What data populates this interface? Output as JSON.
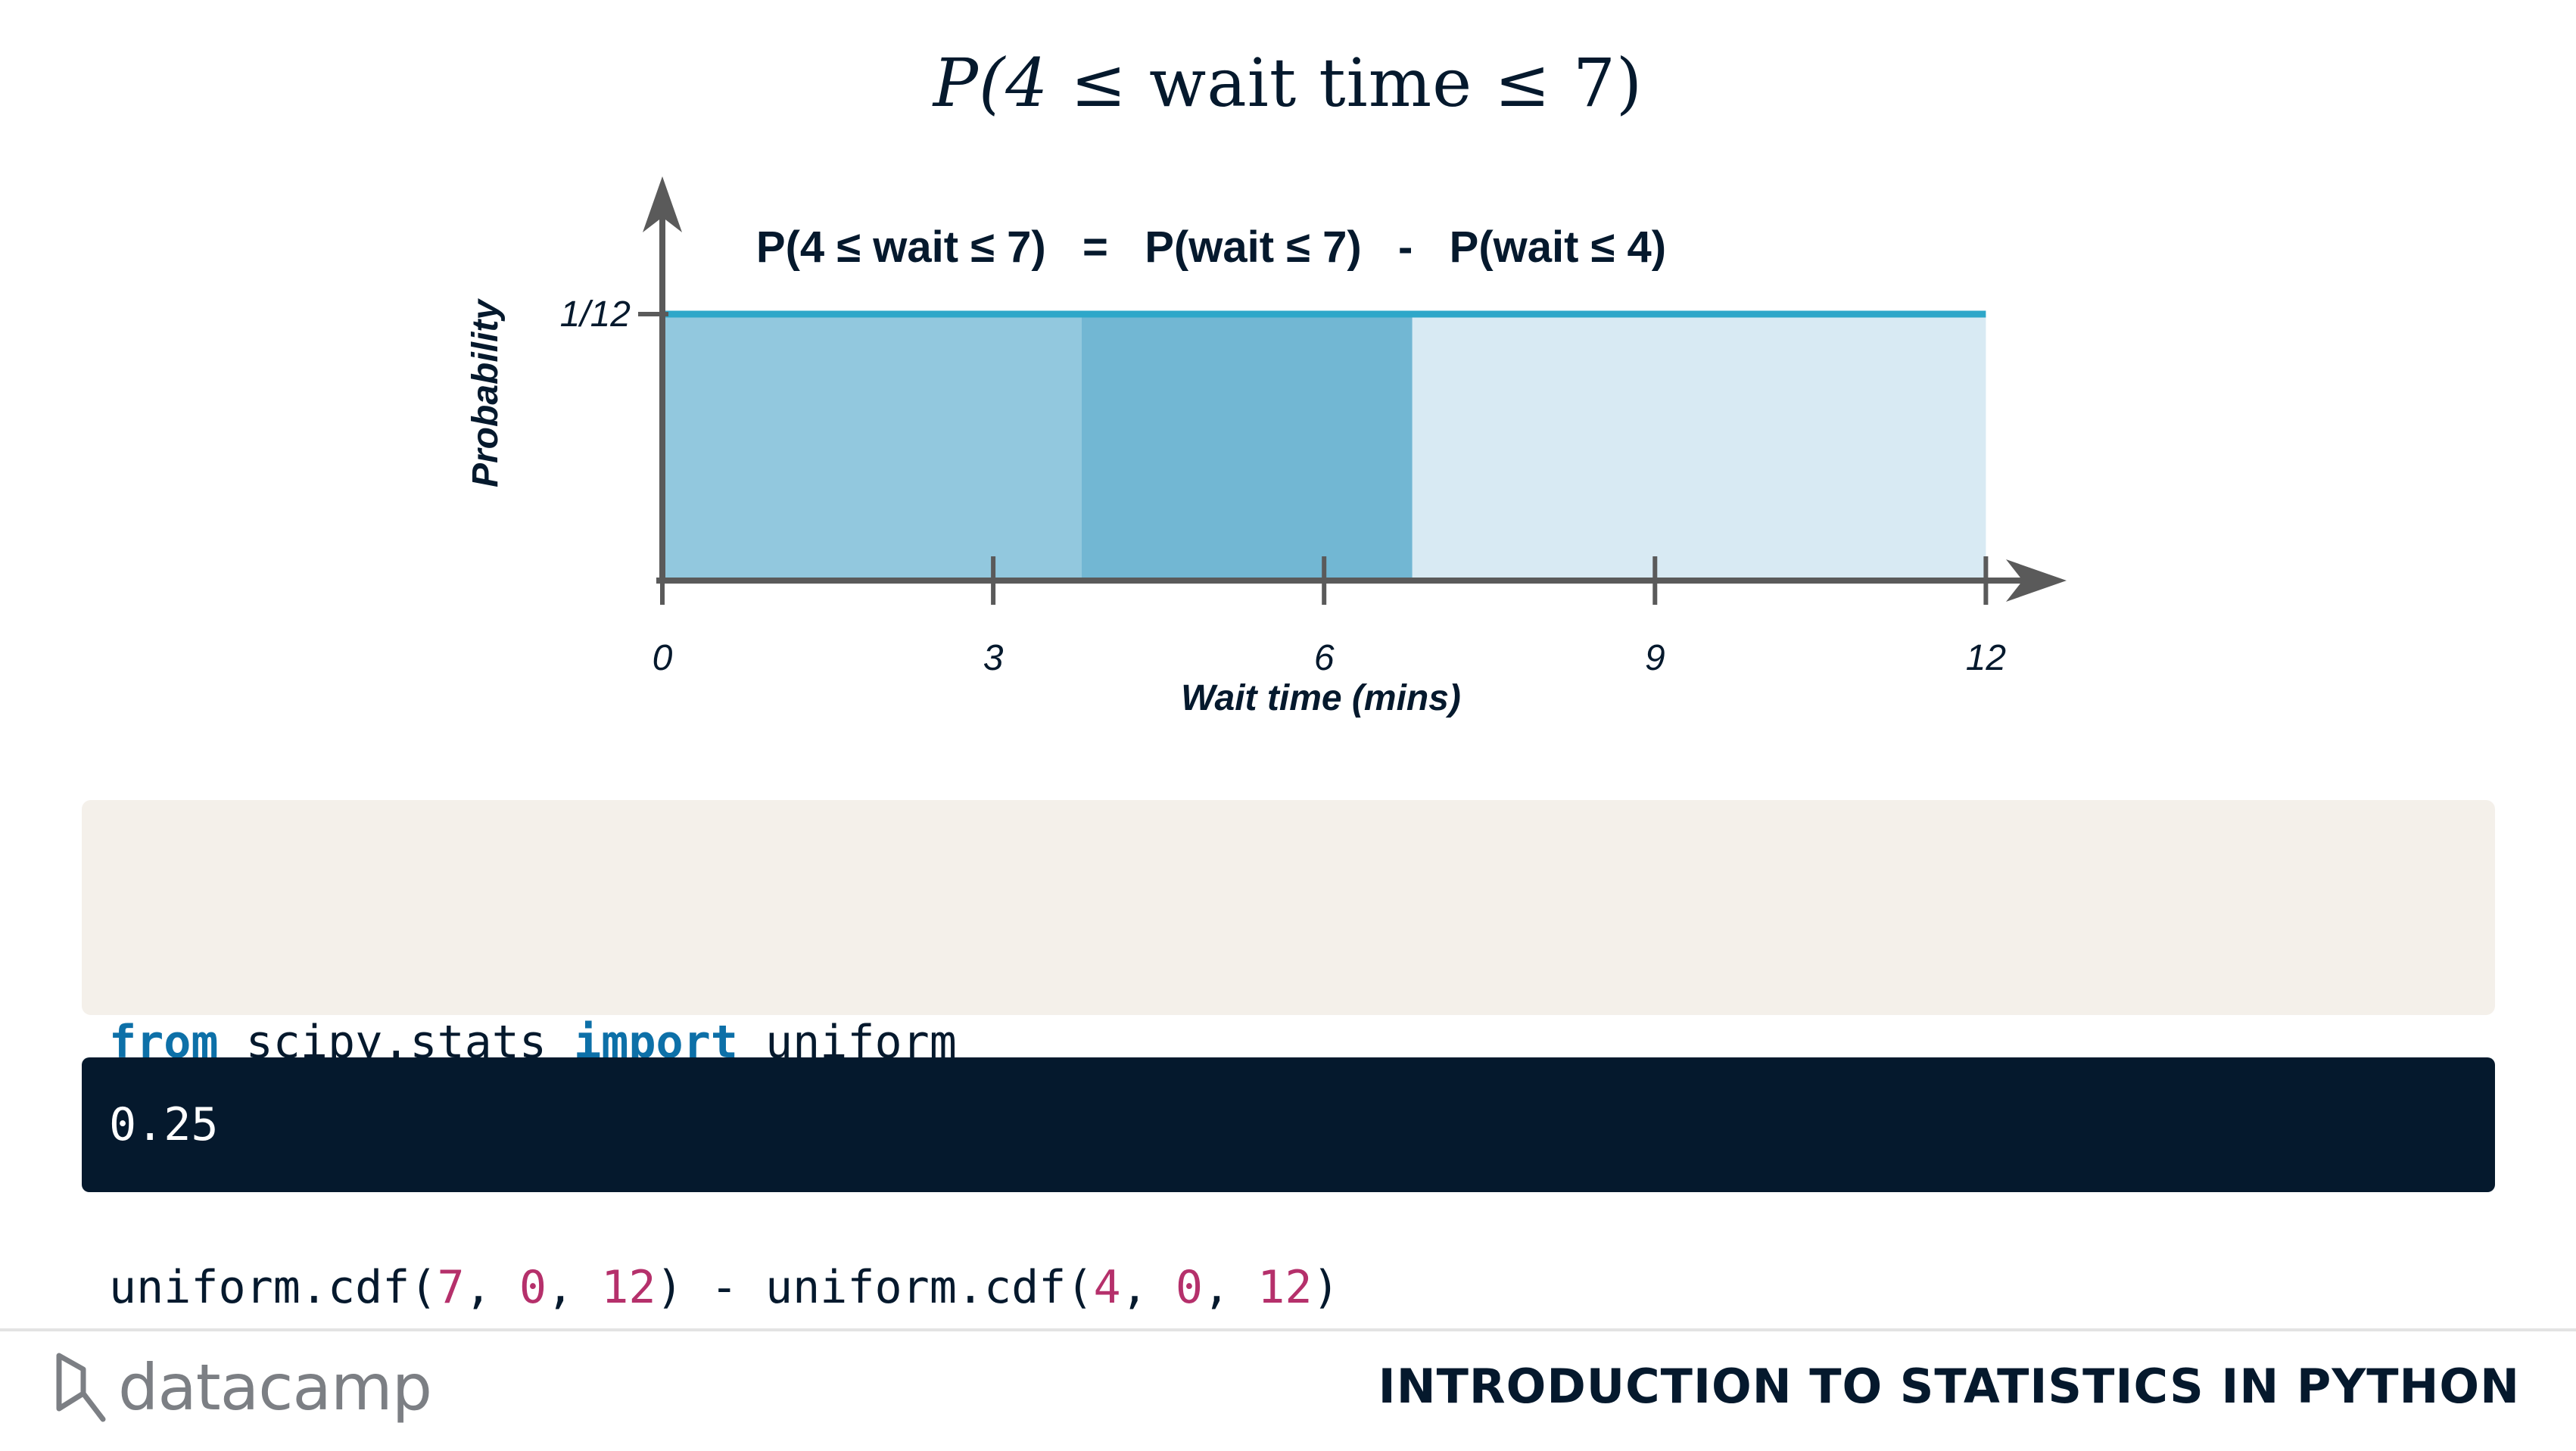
{
  "title": {
    "prefix": "P(4 ≤ ",
    "middle": "wait time",
    "suffix": " ≤ 7)"
  },
  "chart_data": {
    "type": "area",
    "equation": "P(4 ≤ wait ≤ 7)   =   P(wait ≤ 7)   -   P(wait ≤ 4)",
    "xlabel": "Wait time (mins)",
    "ylabel": "Probability",
    "x_ticks": [
      "0",
      "3",
      "6",
      "9",
      "12"
    ],
    "y_ticks": [
      "1/12"
    ],
    "xlim": [
      0,
      13.3
    ],
    "density": {
      "x_start": 0,
      "x_end": 12,
      "y": 0.0833
    },
    "shaded_regions": [
      {
        "from": 0,
        "to": 3.8,
        "color": "#92c8de"
      },
      {
        "from": 3.8,
        "to": 6.8,
        "color": "#72b7d3"
      },
      {
        "from": 6.8,
        "to": 12,
        "color": "#d8eaf3"
      }
    ],
    "colors": {
      "line": "#2ea7c9",
      "axis": "#5a5a5a",
      "text": "#05192d"
    }
  },
  "code": {
    "line1": [
      {
        "text": "from",
        "kind": "kw"
      },
      {
        "text": " scipy.stats ",
        "kind": "plain"
      },
      {
        "text": "import",
        "kind": "kw"
      },
      {
        "text": " uniform",
        "kind": "plain"
      }
    ],
    "line2": [
      {
        "text": "uniform.cdf(",
        "kind": "plain"
      },
      {
        "text": "7",
        "kind": "num"
      },
      {
        "text": ", ",
        "kind": "plain"
      },
      {
        "text": "0",
        "kind": "num"
      },
      {
        "text": ", ",
        "kind": "plain"
      },
      {
        "text": "12",
        "kind": "num"
      },
      {
        "text": ") - uniform.cdf(",
        "kind": "plain"
      },
      {
        "text": "4",
        "kind": "num"
      },
      {
        "text": ", ",
        "kind": "plain"
      },
      {
        "text": "0",
        "kind": "num"
      },
      {
        "text": ", ",
        "kind": "plain"
      },
      {
        "text": "12",
        "kind": "num"
      },
      {
        "text": ")",
        "kind": "plain"
      }
    ]
  },
  "output": {
    "text": "0.25"
  },
  "footer": {
    "logo_text": "datacamp",
    "course": "INTRODUCTION TO STATISTICS IN PYTHON"
  }
}
